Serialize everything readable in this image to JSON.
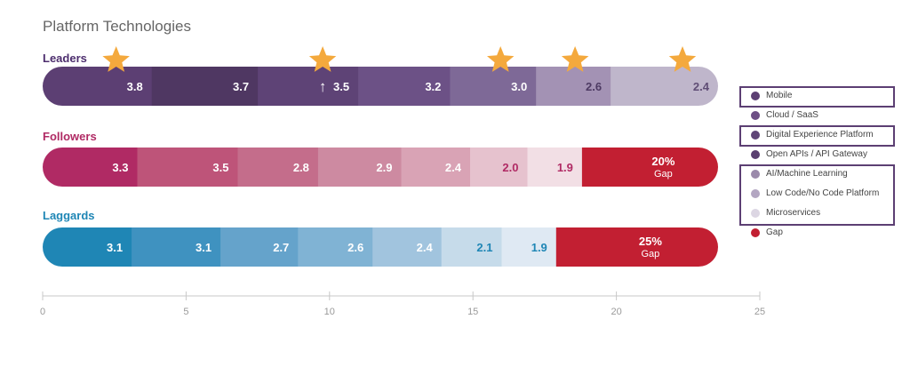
{
  "chart_data": {
    "type": "bar",
    "stacked": true,
    "orientation": "horizontal",
    "title": "Platform Technologies",
    "xlim": [
      0,
      25
    ],
    "xticks": [
      0,
      5,
      10,
      15,
      20,
      25
    ],
    "grid": false,
    "legend_position": "right",
    "legend": [
      {
        "label": "Mobile",
        "color": "#5c3f73",
        "highlight": true
      },
      {
        "label": "Cloud / SaaS",
        "color": "#6d4f85",
        "highlight": false
      },
      {
        "label": "Digital Experience Platform",
        "color": "#5f4577",
        "highlight": true
      },
      {
        "label": "Open APIs / API Gateway",
        "color": "#5a3f70",
        "highlight": false
      },
      {
        "label": "AI/Machine Learning",
        "color": "#9b8aab",
        "highlight": true
      },
      {
        "label": "Low Code/No Code Platform",
        "color": "#b3a6c2",
        "highlight": true
      },
      {
        "label": "Microservices",
        "color": "#dcd6e3",
        "highlight": true
      },
      {
        "label": "Gap",
        "color": "#c21f32",
        "highlight": false
      }
    ],
    "groups": [
      {
        "name": "Leaders",
        "label_color": "#4d2e6e",
        "segments": [
          {
            "value": 3.8,
            "label": "3.8",
            "color": "#5c3f73",
            "text_color": "#ffffff",
            "star": true
          },
          {
            "value": 3.7,
            "label": "3.7",
            "color": "#4f3762",
            "text_color": "#ffffff",
            "star": false
          },
          {
            "value": 3.5,
            "label": "3.5",
            "color": "#5e4376",
            "text_color": "#ffffff",
            "star": true,
            "arrow": "↑"
          },
          {
            "value": 3.2,
            "label": "3.2",
            "color": "#6c5186",
            "text_color": "#ffffff",
            "star": false
          },
          {
            "value": 3.0,
            "label": "3.0",
            "color": "#7e6997",
            "text_color": "#ffffff",
            "star": true
          },
          {
            "value": 2.6,
            "label": "2.6",
            "color": "#a392b4",
            "text_color": "#4d3a63",
            "star": true
          },
          {
            "value": 2.4,
            "label": "2.4",
            "color": "#bfb6cb",
            "text_color": "#5f4d75",
            "star": true
          }
        ],
        "gap": null
      },
      {
        "name": "Followers",
        "label_color": "#b02a64",
        "segments": [
          {
            "value": 3.3,
            "label": "3.3",
            "color": "#b02a64",
            "text_color": "#ffffff"
          },
          {
            "value": 3.5,
            "label": "3.5",
            "color": "#be5479",
            "text_color": "#ffffff"
          },
          {
            "value": 2.8,
            "label": "2.8",
            "color": "#c46d8b",
            "text_color": "#ffffff"
          },
          {
            "value": 2.9,
            "label": "2.9",
            "color": "#cd8aa1",
            "text_color": "#ffffff"
          },
          {
            "value": 2.4,
            "label": "2.4",
            "color": "#d9a3b5",
            "text_color": "#ffffff"
          },
          {
            "value": 2.0,
            "label": "2.0",
            "color": "#e6c2ce",
            "text_color": "#b02a64"
          },
          {
            "value": 1.9,
            "label": "1.9",
            "color": "#f2dfe5",
            "text_color": "#b02a64"
          }
        ],
        "gap": {
          "percent": "20%",
          "label": "Gap",
          "color": "#c21f32"
        }
      },
      {
        "name": "Laggards",
        "label_color": "#1f86b5",
        "segments": [
          {
            "value": 3.1,
            "label": "3.1",
            "color": "#1f86b5",
            "text_color": "#ffffff"
          },
          {
            "value": 3.1,
            "label": "3.1",
            "color": "#3f92c0",
            "text_color": "#ffffff"
          },
          {
            "value": 2.7,
            "label": "2.7",
            "color": "#65a3cb",
            "text_color": "#ffffff"
          },
          {
            "value": 2.6,
            "label": "2.6",
            "color": "#80b3d4",
            "text_color": "#ffffff"
          },
          {
            "value": 2.4,
            "label": "2.4",
            "color": "#a1c4de",
            "text_color": "#ffffff"
          },
          {
            "value": 2.1,
            "label": "2.1",
            "color": "#c6dbea",
            "text_color": "#1f86b5"
          },
          {
            "value": 1.9,
            "label": "1.9",
            "color": "#dfe9f3",
            "text_color": "#1f86b5"
          }
        ],
        "gap": {
          "percent": "25%",
          "label": "Gap",
          "color": "#c21f32"
        }
      }
    ]
  }
}
